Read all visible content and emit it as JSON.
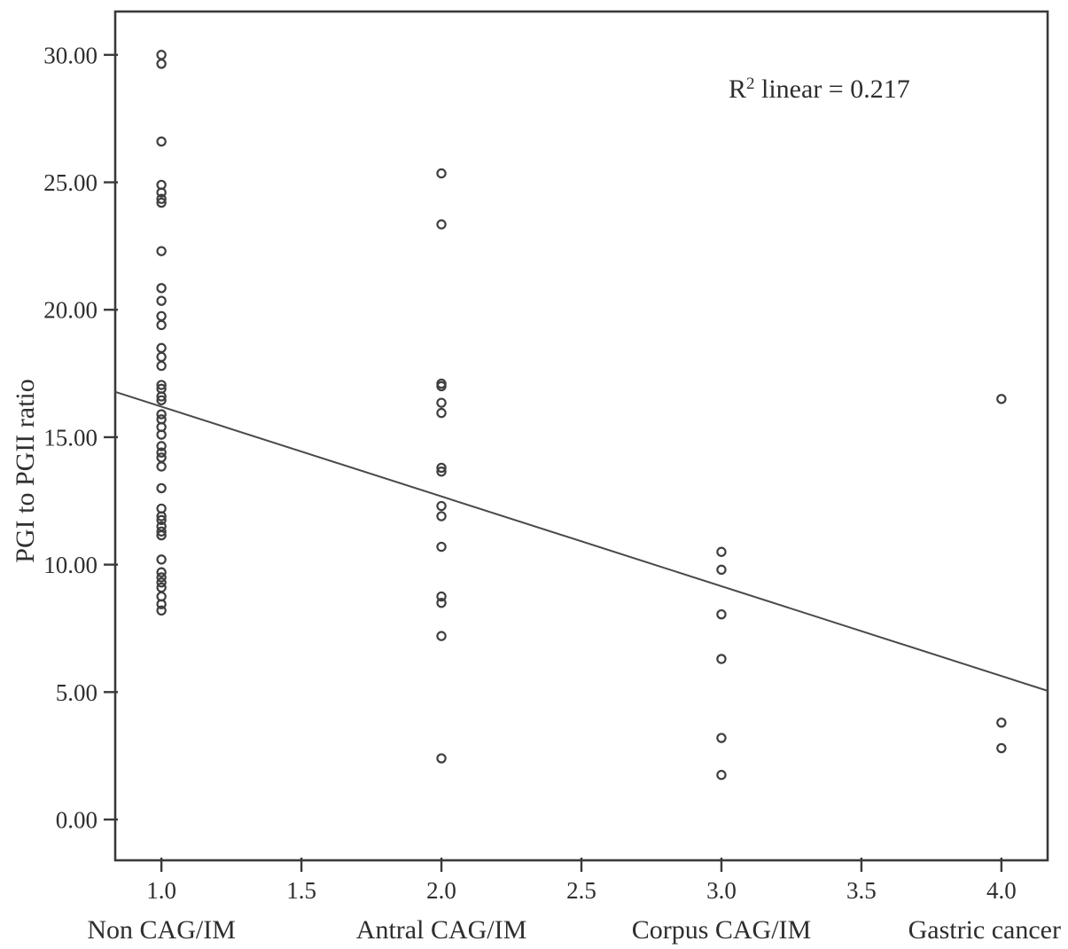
{
  "chart_data": {
    "type": "scatter",
    "title": "",
    "xlabel": "",
    "ylabel": "PGI to PGII ratio",
    "annotation": {
      "text": "R² linear = 0.217",
      "base": "R",
      "sup": "2",
      "rest": " linear = 0.217"
    },
    "xlim": [
      0.835,
      4.165
    ],
    "ylim": [
      -1.6,
      31.7
    ],
    "grid": false,
    "legend": "none",
    "x_ticks": [
      {
        "v": 1.0,
        "label": "1.0"
      },
      {
        "v": 1.5,
        "label": "1.5"
      },
      {
        "v": 2.0,
        "label": "2.0"
      },
      {
        "v": 2.5,
        "label": "2.5"
      },
      {
        "v": 3.0,
        "label": "3.0"
      },
      {
        "v": 3.5,
        "label": "3.5"
      },
      {
        "v": 4.0,
        "label": "4.0"
      }
    ],
    "y_ticks": [
      {
        "v": 30,
        "label": "30.00"
      },
      {
        "v": 25,
        "label": "25.00"
      },
      {
        "v": 20,
        "label": "20.00"
      },
      {
        "v": 15,
        "label": "15.00"
      },
      {
        "v": 10,
        "label": "10.00"
      },
      {
        "v": 5,
        "label": "5.00"
      },
      {
        "v": 0,
        "label": "0.00"
      }
    ],
    "series": [
      {
        "name": "Non CAG/IM",
        "x": 1.0,
        "values": [
          30.0,
          29.65,
          26.6,
          24.9,
          24.6,
          24.35,
          24.2,
          22.3,
          20.85,
          20.35,
          19.75,
          19.4,
          18.5,
          18.15,
          17.8,
          17.05,
          16.9,
          16.6,
          16.45,
          15.9,
          15.7,
          15.4,
          15.1,
          14.65,
          14.4,
          14.2,
          13.85,
          13.0,
          12.2,
          11.9,
          11.75,
          11.5,
          11.3,
          11.15,
          10.2,
          9.7,
          9.5,
          9.3,
          9.1,
          8.75,
          8.45,
          8.2
        ]
      },
      {
        "name": "Antral CAG/IM",
        "x": 2.0,
        "values": [
          25.35,
          23.35,
          17.1,
          17.0,
          16.35,
          15.95,
          13.8,
          13.65,
          12.3,
          11.9,
          10.7,
          8.75,
          8.5,
          7.2,
          2.4
        ]
      },
      {
        "name": "Corpus CAG/IM",
        "x": 3.0,
        "values": [
          10.5,
          9.8,
          8.05,
          6.3,
          3.2,
          1.75
        ]
      },
      {
        "name": "Gastric cancer",
        "x": 4.0,
        "values": [
          16.5,
          3.8,
          2.8
        ]
      }
    ],
    "regression_line": {
      "x1": 0.835,
      "y1": 16.78,
      "x2": 4.165,
      "y2": 5.05
    },
    "marker": {
      "shape": "open-circle",
      "stroke": "#3f3f3f",
      "fill": "none"
    },
    "colors": {
      "axis": "#3a3a3a",
      "text": "#2e2e2e",
      "line": "#4a4a4a",
      "background": "#ffffff"
    }
  }
}
